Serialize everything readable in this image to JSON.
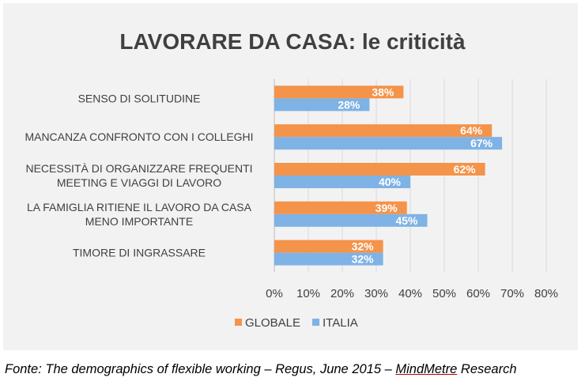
{
  "chart_data": {
    "type": "bar",
    "orientation": "horizontal",
    "title": "LAVORARE DA CASA: le criticità",
    "categories": [
      [
        "SENSO DI SOLITUDINE"
      ],
      [
        "MANCANZA CONFRONTO CON I COLLEGHI"
      ],
      [
        "NECESSITÀ DI ORGANIZZARE FREQUENTI",
        "MEETING E VIAGGI DI LAVORO"
      ],
      [
        "LA FAMIGLIA RITIENE IL LAVORO DA CASA",
        "MENO IMPORTANTE"
      ],
      [
        "TIMORE DI INGRASSARE"
      ]
    ],
    "series": [
      {
        "name": "GLOBALE",
        "color": "#f4934a",
        "values": [
          38,
          64,
          62,
          39,
          32
        ],
        "labels": [
          "38%",
          "64%",
          "62%",
          "39%",
          "32%"
        ]
      },
      {
        "name": "ITALIA",
        "color": "#7fb2e5",
        "values": [
          28,
          67,
          40,
          45,
          32
        ],
        "labels": [
          "28%",
          "67%",
          "40%",
          "45%",
          "32%"
        ]
      }
    ],
    "xlim": [
      0,
      80
    ],
    "xticks": [
      "0%",
      "10%",
      "20%",
      "30%",
      "40%",
      "50%",
      "60%",
      "70%",
      "80%"
    ],
    "grid": true,
    "legend_position": "bottom"
  },
  "source": {
    "prefix": "Fonte: The demographics of flexible working – Regus, June 2015 – ",
    "underlined": "MindMetre",
    "suffix": " Research"
  }
}
